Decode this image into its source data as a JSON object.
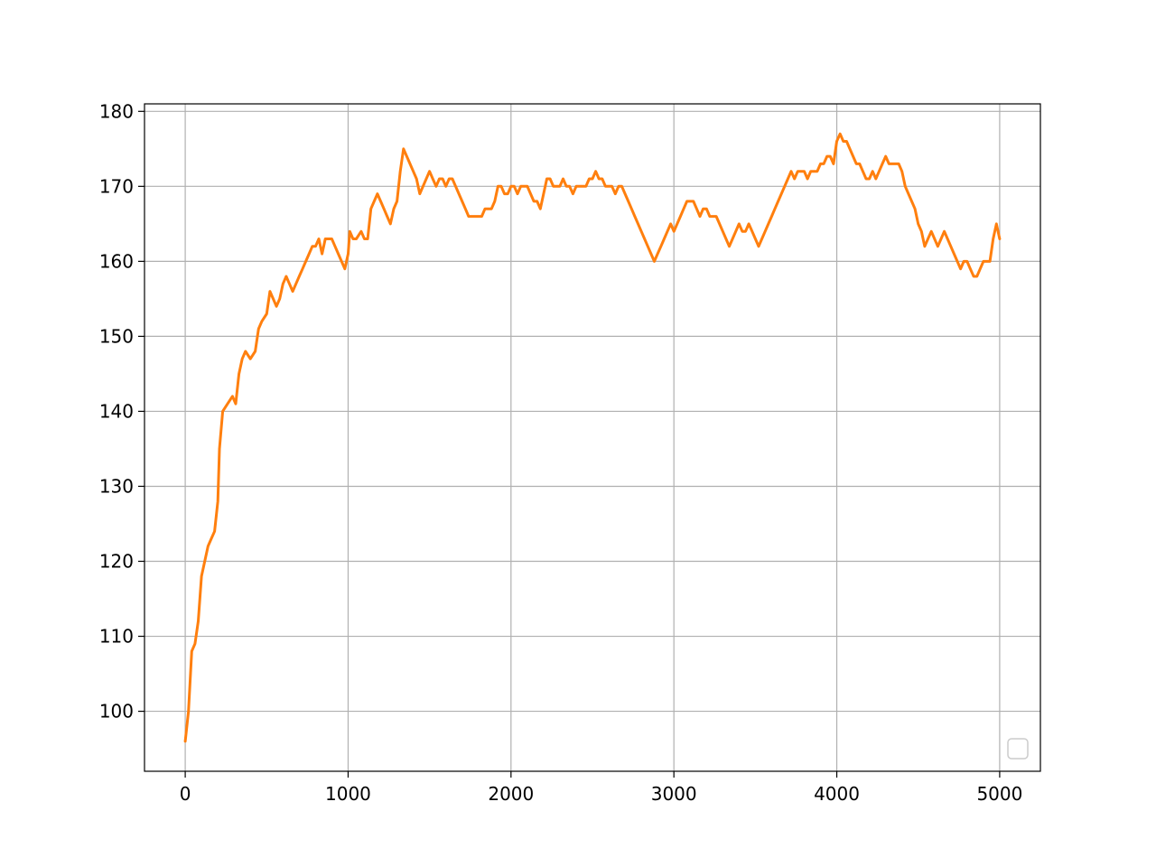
{
  "chart_data": {
    "type": "line",
    "title": "",
    "xlabel": "",
    "ylabel": "",
    "xlim": [
      -250,
      5250
    ],
    "ylim": [
      92,
      181
    ],
    "xticks": [
      0,
      1000,
      2000,
      3000,
      4000,
      5000
    ],
    "xtick_labels": [
      "0",
      "1000",
      "2000",
      "3000",
      "4000",
      "5000"
    ],
    "yticks": [
      100,
      110,
      120,
      130,
      140,
      150,
      160,
      170,
      180
    ],
    "ytick_labels": [
      "100",
      "110",
      "120",
      "130",
      "140",
      "150",
      "160",
      "170",
      "180"
    ],
    "grid": true,
    "legend": "lower right (empty)",
    "series": [
      {
        "color": "#ff7f0e",
        "points": [
          [
            0,
            96
          ],
          [
            20,
            100
          ],
          [
            40,
            108
          ],
          [
            60,
            109
          ],
          [
            80,
            112
          ],
          [
            100,
            118
          ],
          [
            120,
            120
          ],
          [
            140,
            122
          ],
          [
            160,
            123
          ],
          [
            180,
            124
          ],
          [
            200,
            128
          ],
          [
            210,
            135
          ],
          [
            230,
            140
          ],
          [
            260,
            141
          ],
          [
            290,
            142
          ],
          [
            310,
            141
          ],
          [
            330,
            145
          ],
          [
            350,
            147
          ],
          [
            370,
            148
          ],
          [
            400,
            147
          ],
          [
            430,
            148
          ],
          [
            450,
            151
          ],
          [
            470,
            152
          ],
          [
            500,
            153
          ],
          [
            520,
            156
          ],
          [
            540,
            155
          ],
          [
            560,
            154
          ],
          [
            580,
            155
          ],
          [
            600,
            157
          ],
          [
            620,
            158
          ],
          [
            640,
            157
          ],
          [
            660,
            156
          ],
          [
            680,
            157
          ],
          [
            700,
            158
          ],
          [
            720,
            159
          ],
          [
            740,
            160
          ],
          [
            760,
            161
          ],
          [
            780,
            162
          ],
          [
            800,
            162
          ],
          [
            820,
            163
          ],
          [
            840,
            161
          ],
          [
            860,
            163
          ],
          [
            880,
            163
          ],
          [
            900,
            163
          ],
          [
            920,
            162
          ],
          [
            940,
            161
          ],
          [
            960,
            160
          ],
          [
            980,
            159
          ],
          [
            1000,
            161
          ],
          [
            1010,
            164
          ],
          [
            1030,
            163
          ],
          [
            1050,
            163
          ],
          [
            1080,
            164
          ],
          [
            1100,
            163
          ],
          [
            1120,
            163
          ],
          [
            1140,
            167
          ],
          [
            1160,
            168
          ],
          [
            1180,
            169
          ],
          [
            1200,
            168
          ],
          [
            1220,
            167
          ],
          [
            1240,
            166
          ],
          [
            1260,
            165
          ],
          [
            1280,
            167
          ],
          [
            1300,
            168
          ],
          [
            1320,
            172
          ],
          [
            1340,
            175
          ],
          [
            1360,
            174
          ],
          [
            1380,
            173
          ],
          [
            1400,
            172
          ],
          [
            1420,
            171
          ],
          [
            1440,
            169
          ],
          [
            1460,
            170
          ],
          [
            1480,
            171
          ],
          [
            1500,
            172
          ],
          [
            1520,
            171
          ],
          [
            1540,
            170
          ],
          [
            1560,
            171
          ],
          [
            1580,
            171
          ],
          [
            1600,
            170
          ],
          [
            1620,
            171
          ],
          [
            1640,
            171
          ],
          [
            1660,
            170
          ],
          [
            1680,
            169
          ],
          [
            1700,
            168
          ],
          [
            1720,
            167
          ],
          [
            1740,
            166
          ],
          [
            1760,
            166
          ],
          [
            1780,
            166
          ],
          [
            1800,
            166
          ],
          [
            1820,
            166
          ],
          [
            1840,
            167
          ],
          [
            1860,
            167
          ],
          [
            1880,
            167
          ],
          [
            1900,
            168
          ],
          [
            1920,
            170
          ],
          [
            1940,
            170
          ],
          [
            1960,
            169
          ],
          [
            1980,
            169
          ],
          [
            2000,
            170
          ],
          [
            2020,
            170
          ],
          [
            2040,
            169
          ],
          [
            2060,
            170
          ],
          [
            2080,
            170
          ],
          [
            2100,
            170
          ],
          [
            2120,
            169
          ],
          [
            2140,
            168
          ],
          [
            2160,
            168
          ],
          [
            2180,
            167
          ],
          [
            2200,
            169
          ],
          [
            2220,
            171
          ],
          [
            2240,
            171
          ],
          [
            2260,
            170
          ],
          [
            2280,
            170
          ],
          [
            2300,
            170
          ],
          [
            2320,
            171
          ],
          [
            2340,
            170
          ],
          [
            2360,
            170
          ],
          [
            2380,
            169
          ],
          [
            2400,
            170
          ],
          [
            2420,
            170
          ],
          [
            2440,
            170
          ],
          [
            2460,
            170
          ],
          [
            2480,
            171
          ],
          [
            2500,
            171
          ],
          [
            2520,
            172
          ],
          [
            2540,
            171
          ],
          [
            2560,
            171
          ],
          [
            2580,
            170
          ],
          [
            2600,
            170
          ],
          [
            2620,
            170
          ],
          [
            2640,
            169
          ],
          [
            2660,
            170
          ],
          [
            2680,
            170
          ],
          [
            2700,
            169
          ],
          [
            2720,
            168
          ],
          [
            2740,
            167
          ],
          [
            2760,
            166
          ],
          [
            2780,
            165
          ],
          [
            2800,
            164
          ],
          [
            2820,
            163
          ],
          [
            2840,
            162
          ],
          [
            2860,
            161
          ],
          [
            2880,
            160
          ],
          [
            2900,
            161
          ],
          [
            2920,
            162
          ],
          [
            2940,
            163
          ],
          [
            2960,
            164
          ],
          [
            2980,
            165
          ],
          [
            3000,
            164
          ],
          [
            3020,
            165
          ],
          [
            3040,
            166
          ],
          [
            3060,
            167
          ],
          [
            3080,
            168
          ],
          [
            3100,
            168
          ],
          [
            3120,
            168
          ],
          [
            3140,
            167
          ],
          [
            3160,
            166
          ],
          [
            3180,
            167
          ],
          [
            3200,
            167
          ],
          [
            3220,
            166
          ],
          [
            3240,
            166
          ],
          [
            3260,
            166
          ],
          [
            3280,
            165
          ],
          [
            3300,
            164
          ],
          [
            3320,
            163
          ],
          [
            3340,
            162
          ],
          [
            3360,
            163
          ],
          [
            3380,
            164
          ],
          [
            3400,
            165
          ],
          [
            3420,
            164
          ],
          [
            3440,
            164
          ],
          [
            3460,
            165
          ],
          [
            3480,
            164
          ],
          [
            3500,
            163
          ],
          [
            3520,
            162
          ],
          [
            3540,
            163
          ],
          [
            3560,
            164
          ],
          [
            3580,
            165
          ],
          [
            3600,
            166
          ],
          [
            3620,
            167
          ],
          [
            3640,
            168
          ],
          [
            3660,
            169
          ],
          [
            3680,
            170
          ],
          [
            3700,
            171
          ],
          [
            3720,
            172
          ],
          [
            3740,
            171
          ],
          [
            3760,
            172
          ],
          [
            3780,
            172
          ],
          [
            3800,
            172
          ],
          [
            3820,
            171
          ],
          [
            3840,
            172
          ],
          [
            3860,
            172
          ],
          [
            3880,
            172
          ],
          [
            3900,
            173
          ],
          [
            3920,
            173
          ],
          [
            3940,
            174
          ],
          [
            3960,
            174
          ],
          [
            3980,
            173
          ],
          [
            4000,
            176
          ],
          [
            4020,
            177
          ],
          [
            4040,
            176
          ],
          [
            4060,
            176
          ],
          [
            4080,
            175
          ],
          [
            4100,
            174
          ],
          [
            4120,
            173
          ],
          [
            4140,
            173
          ],
          [
            4160,
            172
          ],
          [
            4180,
            171
          ],
          [
            4200,
            171
          ],
          [
            4220,
            172
          ],
          [
            4240,
            171
          ],
          [
            4260,
            172
          ],
          [
            4280,
            173
          ],
          [
            4300,
            174
          ],
          [
            4320,
            173
          ],
          [
            4340,
            173
          ],
          [
            4360,
            173
          ],
          [
            4380,
            173
          ],
          [
            4400,
            172
          ],
          [
            4420,
            170
          ],
          [
            4440,
            169
          ],
          [
            4460,
            168
          ],
          [
            4480,
            167
          ],
          [
            4500,
            165
          ],
          [
            4520,
            164
          ],
          [
            4540,
            162
          ],
          [
            4560,
            163
          ],
          [
            4580,
            164
          ],
          [
            4600,
            163
          ],
          [
            4620,
            162
          ],
          [
            4640,
            163
          ],
          [
            4660,
            164
          ],
          [
            4680,
            163
          ],
          [
            4700,
            162
          ],
          [
            4720,
            161
          ],
          [
            4740,
            160
          ],
          [
            4760,
            159
          ],
          [
            4780,
            160
          ],
          [
            4800,
            160
          ],
          [
            4820,
            159
          ],
          [
            4840,
            158
          ],
          [
            4860,
            158
          ],
          [
            4880,
            159
          ],
          [
            4900,
            160
          ],
          [
            4920,
            160
          ],
          [
            4940,
            160
          ],
          [
            4960,
            163
          ],
          [
            4980,
            165
          ],
          [
            5000,
            163
          ]
        ]
      }
    ]
  }
}
